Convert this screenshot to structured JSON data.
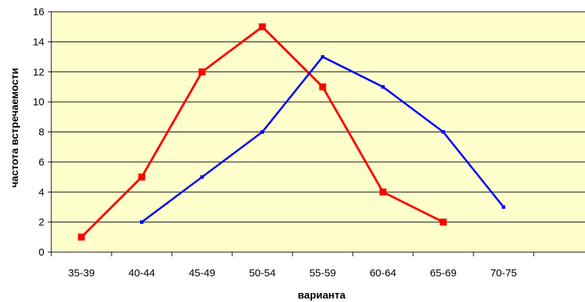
{
  "chart_data": {
    "type": "line",
    "title": "",
    "xlabel": "варианта",
    "ylabel": "частота встречаемости",
    "categories": [
      "35-39",
      "40-44",
      "45-49",
      "50-54",
      "55-59",
      "60-64",
      "65-69",
      "70-75"
    ],
    "ylim": [
      0,
      16
    ],
    "yticks": [
      0,
      2,
      4,
      6,
      8,
      10,
      12,
      14,
      16
    ],
    "grid": true,
    "legend": "none",
    "plot_background": "#FFFFCC",
    "series": [
      {
        "color": "#FF0000",
        "marker": "square",
        "values": [
          1,
          5,
          12,
          15,
          11,
          4,
          2,
          null
        ]
      },
      {
        "color": "#0000FF",
        "marker": "small-square",
        "values": [
          null,
          2,
          5,
          8,
          13,
          11,
          8,
          3
        ]
      }
    ]
  }
}
